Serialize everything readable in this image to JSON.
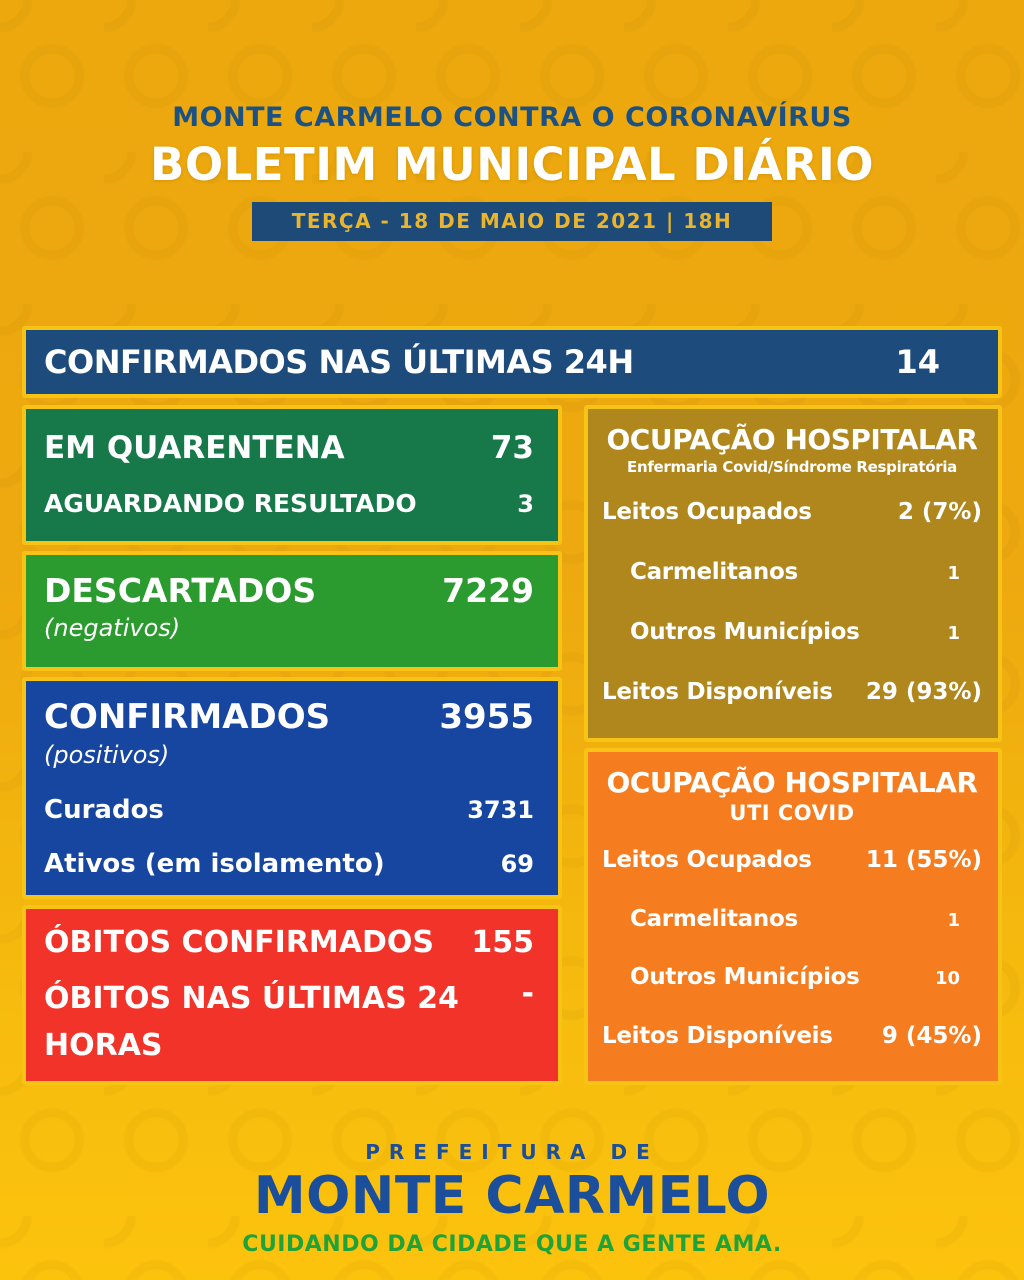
{
  "header": {
    "subtitle": "MONTE CARMELO CONTRA O CORONAVÍRUS",
    "title": "BOLETIM MUNICIPAL DIÁRIO",
    "date_badge": "TERÇA - 18 DE MAIO DE 2021 | 18H"
  },
  "confirmed_24h": {
    "label": "CONFIRMADOS NAS ÚLTIMAS 24H",
    "value": "14"
  },
  "left_column": {
    "quarantine": {
      "rows": [
        {
          "label": "EM QUARENTENA",
          "value": "73"
        },
        {
          "label": "AGUARDANDO RESULTADO",
          "value": "3"
        }
      ]
    },
    "discarded": {
      "label": "DESCARTADOS",
      "sublabel": "(negativos)",
      "value": "7229"
    },
    "confirmed": {
      "label": "CONFIRMADOS",
      "sublabel": "(positivos)",
      "value": "3955",
      "rows": [
        {
          "label": "Curados",
          "value": "3731"
        },
        {
          "label": "Ativos (em isolamento)",
          "value": "69"
        }
      ]
    },
    "deaths": {
      "rows": [
        {
          "label": "ÓBITOS CONFIRMADOS",
          "value": "155"
        },
        {
          "label": "ÓBITOS NAS ÚLTIMAS 24 HORAS",
          "value": "-"
        }
      ]
    }
  },
  "right_column": {
    "ward": {
      "title": "OCUPAÇÃO HOSPITALAR",
      "subtitle": "Enfermaria Covid/Síndrome Respiratória",
      "rows": [
        {
          "label": "Leitos Ocupados",
          "value": "2 (7%)"
        },
        {
          "label": "Carmelitanos",
          "value": "1"
        },
        {
          "label": "Outros Municípios",
          "value": "1"
        },
        {
          "label": "Leitos Disponíveis",
          "value": "29 (93%)"
        }
      ]
    },
    "icu": {
      "title": "OCUPAÇÃO HOSPITALAR",
      "subtitle": "UTI COVID",
      "rows": [
        {
          "label": "Leitos Ocupados",
          "value": "11 (55%)"
        },
        {
          "label": "Carmelitanos",
          "value": "1"
        },
        {
          "label": "Outros Municípios",
          "value": "10"
        },
        {
          "label": "Leitos Disponíveis",
          "value": "9 (45%)"
        }
      ]
    }
  },
  "footer": {
    "pretitle": "PREFEITURA DE",
    "title": "MONTE CARMELO",
    "slogan": "CUIDANDO DA CIDADE QUE A GENTE AMA."
  },
  "colors": {
    "background_gold": "#ECA80D",
    "background_bottom": "#FCC30D",
    "box_border_yellow": "#F7C415",
    "bar_blue": "#1D4B7B",
    "header_blue": "#1B5283",
    "date_text_yellow": "#E9B52E",
    "quarantine_green_dark": "#17784A",
    "discarded_green": "#2B9B30",
    "confirmed_blue": "#1746A1",
    "deaths_red": "#F23329",
    "ward_gold": "#AF871C",
    "icu_orange": "#F57D20",
    "footer_blue": "#1B4F9C",
    "slogan_green": "#1FA339"
  }
}
